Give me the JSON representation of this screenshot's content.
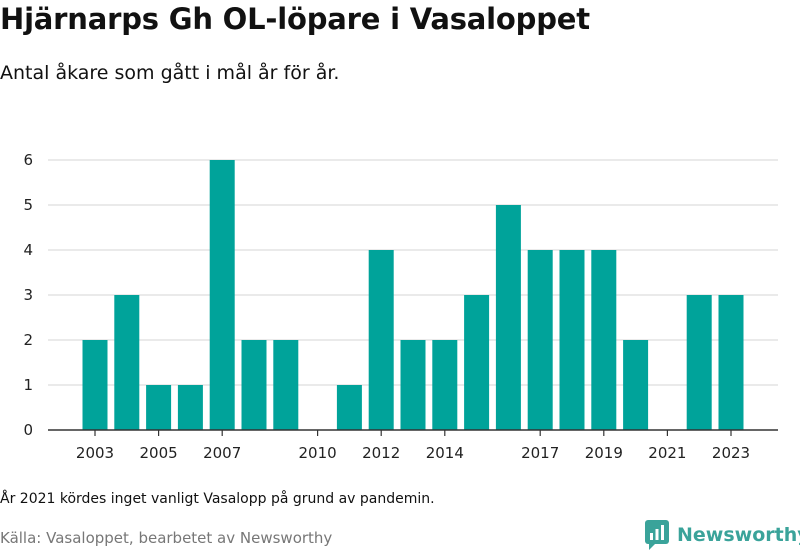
{
  "title": "Hjärnarps Gh OL-löpare i Vasaloppet",
  "subtitle": "Antal åkare som gått i mål år för år.",
  "footnote": "År 2021 kördes inget vanligt Vasalopp på grund av pandemin.",
  "source": "Källa: Vasaloppet, bearbetet av Newsworthy",
  "logo_text": "Newsworthy",
  "colors": {
    "bar": "#00a39a",
    "grid": "#dddddd",
    "axis": "#333333",
    "logo": "#3aa39a"
  },
  "chart_data": {
    "type": "bar",
    "categories": [
      2003,
      2004,
      2005,
      2006,
      2007,
      2008,
      2009,
      2010,
      2011,
      2012,
      2013,
      2014,
      2015,
      2016,
      2017,
      2018,
      2019,
      2020,
      2021,
      2022,
      2023
    ],
    "values": [
      2,
      3,
      1,
      1,
      6,
      2,
      2,
      0,
      1,
      4,
      2,
      2,
      3,
      5,
      4,
      4,
      4,
      2,
      0,
      3,
      3
    ],
    "x_tick_labels": [
      "2003",
      "2005",
      "2007",
      "2010",
      "2012",
      "2014",
      "2017",
      "2019",
      "2021",
      "2023"
    ],
    "y_ticks": [
      0,
      1,
      2,
      3,
      4,
      5,
      6
    ],
    "ylim": [
      0,
      6
    ],
    "grid": true,
    "legend": "none",
    "xlabel": "",
    "ylabel": ""
  }
}
